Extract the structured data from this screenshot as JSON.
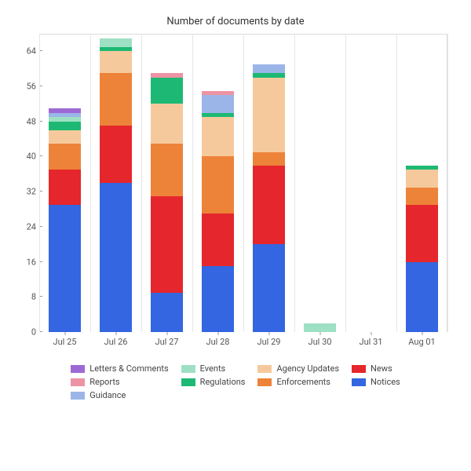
{
  "chart": {
    "type": "bar",
    "title": "Number of documents by date",
    "title_fontsize": 13,
    "background_color": "#ffffff",
    "grid_color": "#e6e6e6",
    "spine_color": "#dcdcdc",
    "label_fontsize": 11,
    "bar_width": 0.62,
    "ylim": [
      0,
      68
    ],
    "ytick_step": 8,
    "yticks": [
      0,
      8,
      16,
      24,
      32,
      40,
      48,
      56,
      64
    ],
    "categories": [
      "Jul 25",
      "Jul 26",
      "Jul 27",
      "Jul 28",
      "Jul 29",
      "Jul 30",
      "Jul 31",
      "Aug 01"
    ],
    "series": [
      {
        "name": "Notices",
        "color": "#3366e0",
        "values": [
          29,
          34,
          9,
          15,
          20,
          0,
          0,
          16
        ]
      },
      {
        "name": "News",
        "color": "#e5262c",
        "values": [
          8,
          13,
          22,
          12,
          18,
          0,
          0,
          13
        ]
      },
      {
        "name": "Enforcements",
        "color": "#ed8338",
        "values": [
          6,
          12,
          12,
          13,
          3,
          0,
          0,
          4
        ]
      },
      {
        "name": "Agency Updates",
        "color": "#f6c99c",
        "values": [
          3,
          5,
          9,
          9,
          17,
          0,
          0,
          4
        ]
      },
      {
        "name": "Regulations",
        "color": "#1db974",
        "values": [
          2,
          1,
          6,
          1,
          1,
          0,
          0,
          1
        ]
      },
      {
        "name": "Events",
        "color": "#9ee0c3",
        "values": [
          1,
          2,
          0,
          0,
          0,
          2,
          0,
          0
        ]
      },
      {
        "name": "Guidance",
        "color": "#9bb5e8",
        "values": [
          1,
          0,
          0,
          4,
          2,
          0,
          0,
          0
        ]
      },
      {
        "name": "Reports",
        "color": "#ed93a3",
        "values": [
          0,
          0,
          1,
          1,
          0,
          0,
          0,
          0
        ]
      },
      {
        "name": "Letters & Comments",
        "color": "#9d69d5",
        "values": [
          1,
          0,
          0,
          0,
          0,
          0,
          0,
          0
        ]
      }
    ],
    "legend_layout": [
      [
        "Letters & Comments",
        "Reports",
        "Guidance"
      ],
      [
        "Events",
        "Regulations"
      ],
      [
        "Agency Updates",
        "Enforcements"
      ],
      [
        "News",
        "Notices"
      ]
    ]
  }
}
